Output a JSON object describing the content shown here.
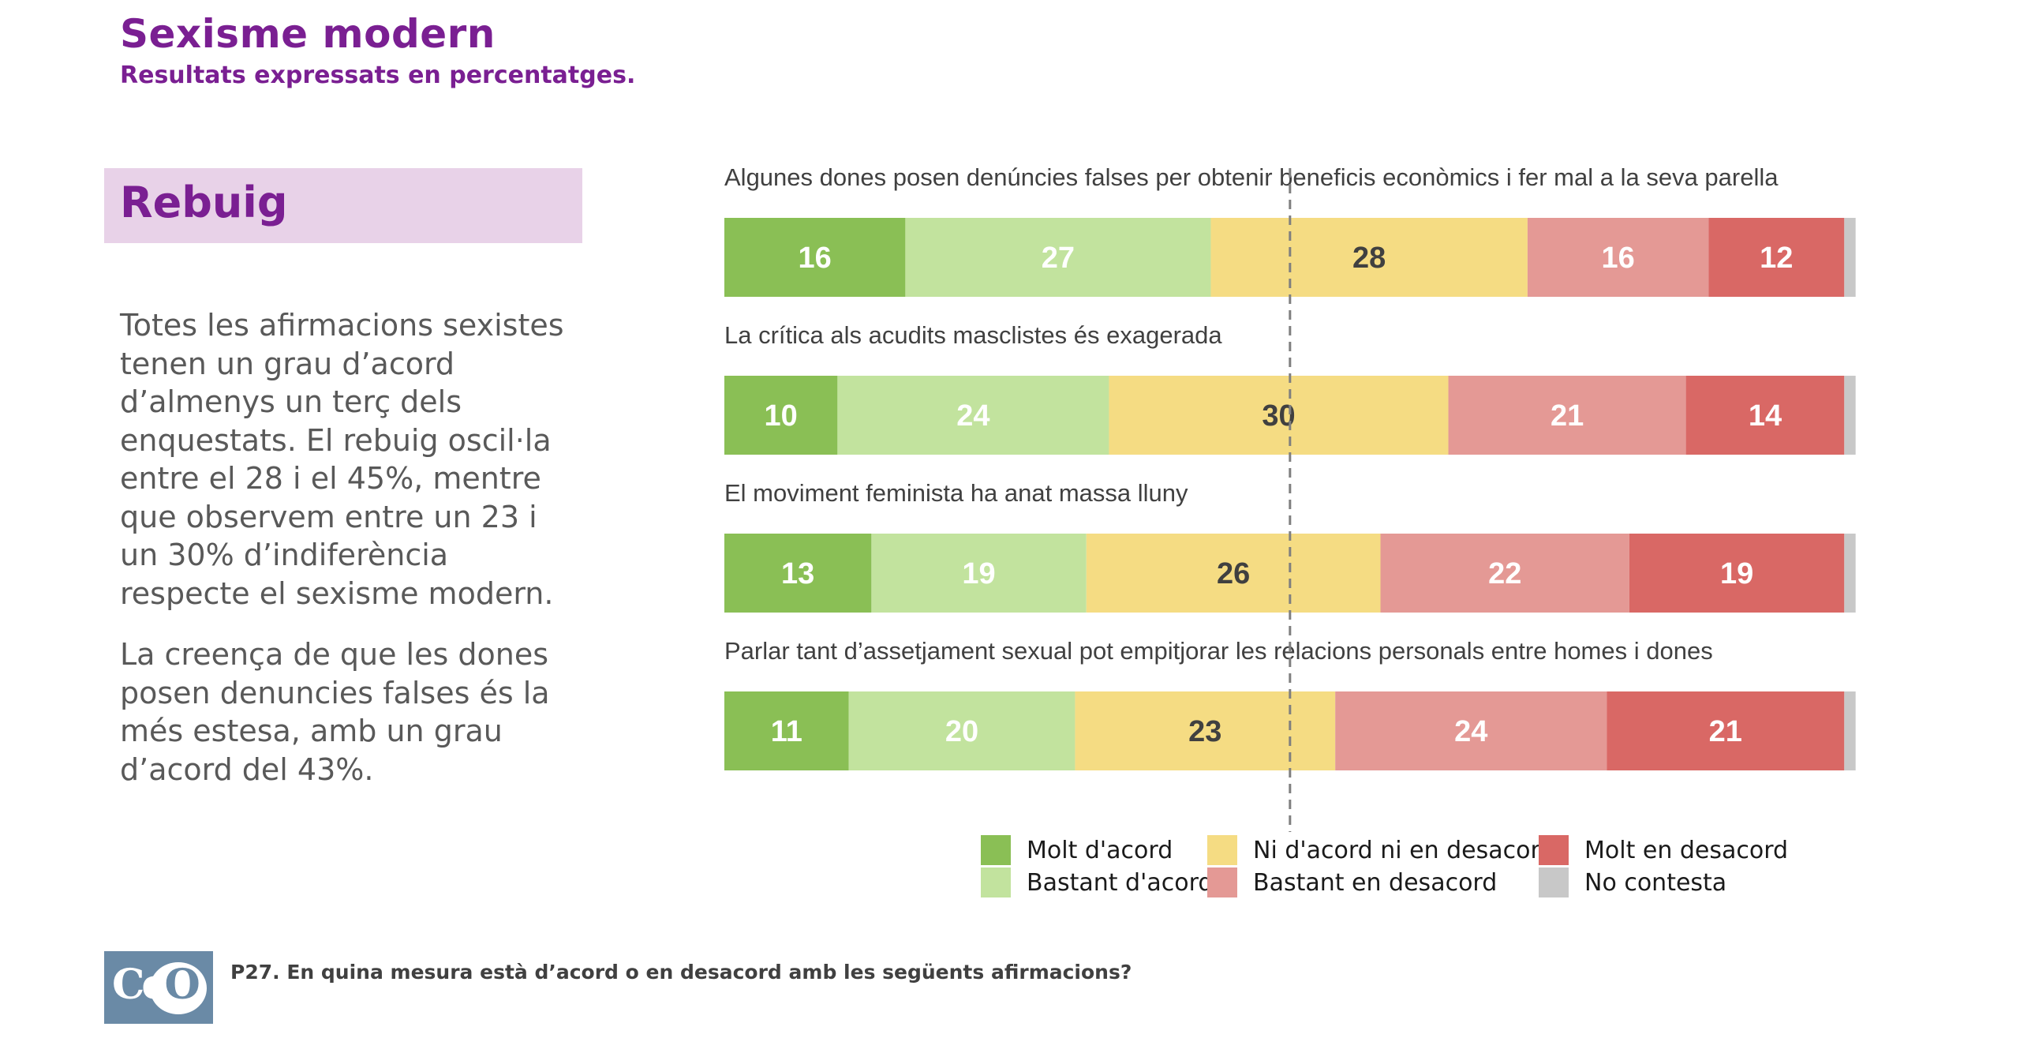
{
  "header": {
    "title": "Sexisme modern",
    "subtitle": "Resultats expressats en percentatges."
  },
  "section": {
    "label": "Rebuig"
  },
  "body": {
    "para1": "Totes les afirmacions sexistes tenen un grau d’acord d’almenys un terç dels enquestats. El rebuig oscil·la entre el 28 i el 45%, mentre que observem entre un 23 i un 30% d’indiferència respecte el sexisme modern.",
    "para2": "La creença de que les dones posen denuncies falses és la més estesa, amb un grau d’acord del 43%."
  },
  "footer": {
    "logo_text": "CeO",
    "note": "P27. En quina mesura està d’acord o en desacord amb les següents afirmacions?"
  },
  "chart_data": {
    "type": "bar",
    "orientation": "horizontal-stacked-100",
    "categories": [
      "Algunes dones posen denúncies falses per obtenir beneficis econòmics i fer mal a la seva parella",
      "La crítica als acudits masclistes és exagerada",
      "El moviment feminista ha anat massa lluny",
      "Parlar tant d’assetjament sexual pot empitjorar les relacions personals entre homes i dones"
    ],
    "series": [
      {
        "name": "Molt d'acord",
        "color": "#8abf55",
        "label_color": "#ffffff",
        "values": [
          16,
          10,
          13,
          11
        ]
      },
      {
        "name": "Bastant d'acord",
        "color": "#c2e39e",
        "label_color": "#ffffff",
        "values": [
          27,
          24,
          19,
          20
        ]
      },
      {
        "name": "Ni d'acord ni en desacord",
        "color": "#f5dc83",
        "label_color": "#404040",
        "values": [
          28,
          30,
          26,
          23
        ]
      },
      {
        "name": "Bastant en desacord",
        "color": "#e49995",
        "label_color": "#ffffff",
        "values": [
          16,
          21,
          22,
          24
        ]
      },
      {
        "name": "Molt en desacord",
        "color": "#d96865",
        "label_color": "#ffffff",
        "values": [
          12,
          14,
          19,
          21
        ]
      },
      {
        "name": "No contesta",
        "color": "#c8c8c8",
        "label_color": "#ffffff",
        "values": [
          1,
          1,
          1,
          1
        ]
      }
    ],
    "xlim": [
      0,
      100
    ],
    "reference_line_at": 50,
    "legend_position": "bottom"
  }
}
